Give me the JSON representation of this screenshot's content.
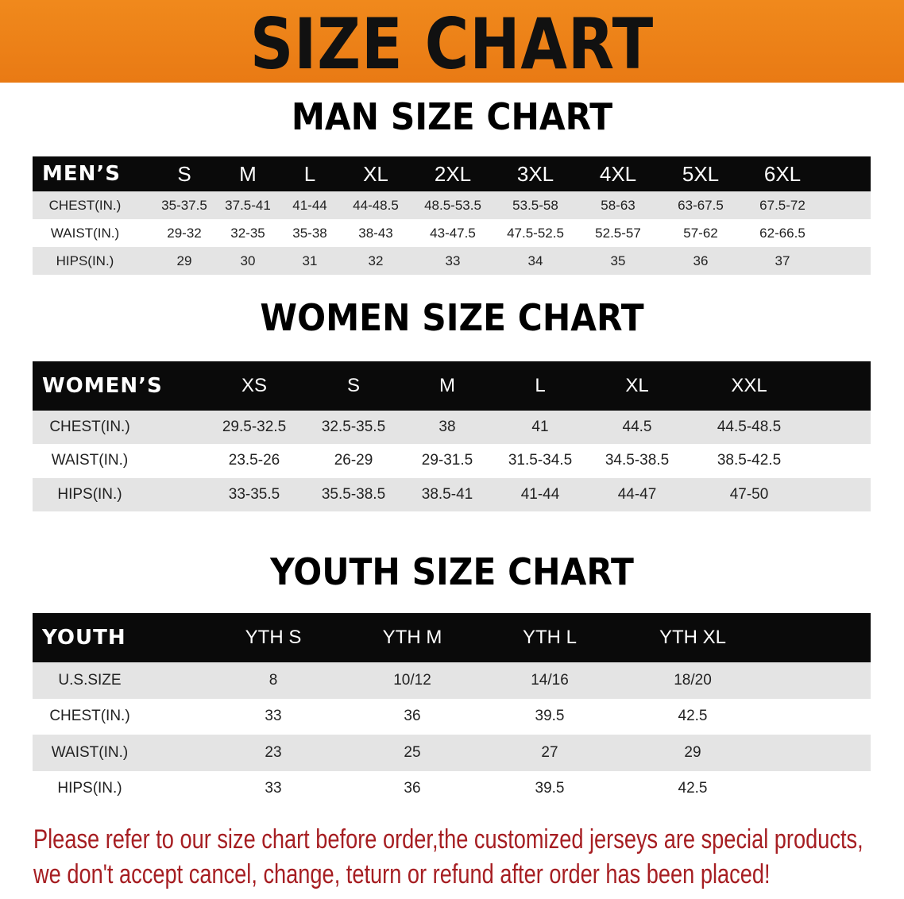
{
  "banner": {
    "title": "SIZE CHART",
    "color": "#ec8118"
  },
  "men": {
    "title": "MAN SIZE CHART",
    "corner": "MEN’S",
    "sizes": [
      "S",
      "M",
      "L",
      "XL",
      "2XL",
      "3XL",
      "4XL",
      "5XL",
      "6XL"
    ],
    "rows": [
      {
        "label": "CHEST(IN.)",
        "values": [
          "35-37.5",
          "37.5-41",
          "41-44",
          "44-48.5",
          "48.5-53.5",
          "53.5-58",
          "58-63",
          "63-67.5",
          "67.5-72"
        ]
      },
      {
        "label": "WAIST(IN.)",
        "values": [
          "29-32",
          "32-35",
          "35-38",
          "38-43",
          "43-47.5",
          "47.5-52.5",
          "52.5-57",
          "57-62",
          "62-66.5"
        ]
      },
      {
        "label": "HIPS(IN.)",
        "values": [
          "29",
          "30",
          "31",
          "32",
          "33",
          "34",
          "35",
          "36",
          "37"
        ]
      }
    ]
  },
  "women": {
    "title": "WOMEN SIZE CHART",
    "corner": "WOMEN’S",
    "sizes": [
      "XS",
      "S",
      "M",
      "L",
      "XL",
      "XXL"
    ],
    "rows": [
      {
        "label": "CHEST(IN.)",
        "values": [
          "29.5-32.5",
          "32.5-35.5",
          "38",
          "41",
          "44.5",
          "44.5-48.5"
        ]
      },
      {
        "label": "WAIST(IN.)",
        "values": [
          "23.5-26",
          "26-29",
          "29-31.5",
          "31.5-34.5",
          "34.5-38.5",
          "38.5-42.5"
        ]
      },
      {
        "label": "HIPS(IN.)",
        "values": [
          "33-35.5",
          "35.5-38.5",
          "38.5-41",
          "41-44",
          "44-47",
          "47-50"
        ]
      }
    ]
  },
  "youth": {
    "title": "YOUTH SIZE CHART",
    "corner": "YOUTH",
    "sizes": [
      "YTH S",
      "YTH M",
      "YTH L",
      "YTH XL"
    ],
    "rows": [
      {
        "label": "U.S.SIZE",
        "values": [
          "8",
          "10/12",
          "14/16",
          "18/20"
        ]
      },
      {
        "label": "CHEST(IN.)",
        "values": [
          "33",
          "36",
          "39.5",
          "42.5"
        ]
      },
      {
        "label": "WAIST(IN.)",
        "values": [
          "23",
          "25",
          "27",
          "29"
        ]
      },
      {
        "label": "HIPS(IN.)",
        "values": [
          "33",
          "36",
          "39.5",
          "42.5"
        ]
      }
    ]
  },
  "notice": {
    "line1": "Please refer to our size chart before order,the customized jerseys are special products,",
    "line2": "we don't accept cancel, change, teturn or refund after order has been placed!",
    "color": "#a61e22"
  }
}
